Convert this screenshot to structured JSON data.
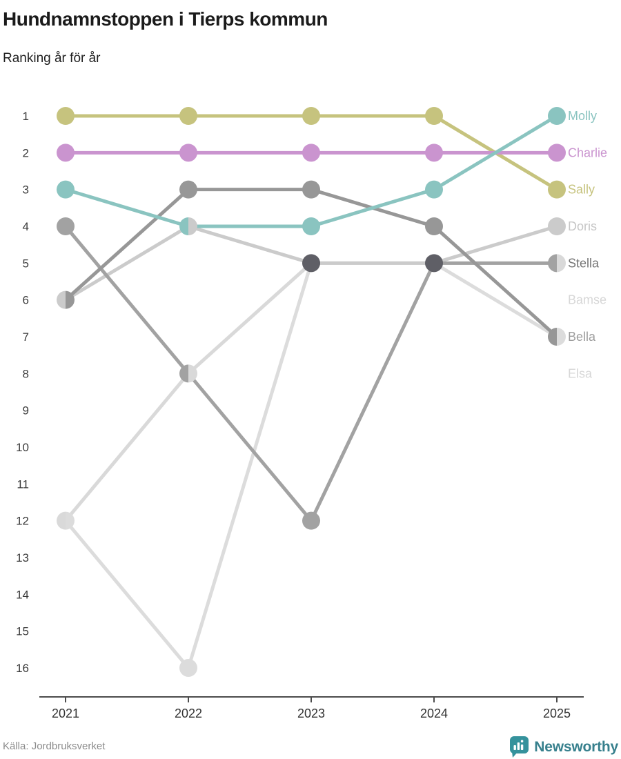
{
  "header": {
    "title": "Hundnamnstoppen i Tierps kommun",
    "subtitle": "Ranking år för år"
  },
  "chart_data": {
    "type": "line",
    "variant": "bump-ranking",
    "title": "Hundnamnstoppen i Tierps kommun",
    "subtitle": "Ranking år för år",
    "x": [
      "2021",
      "2022",
      "2023",
      "2024",
      "2025"
    ],
    "rank_ticks": [
      1,
      2,
      3,
      4,
      5,
      6,
      7,
      8,
      9,
      10,
      11,
      12,
      13,
      14,
      15,
      16
    ],
    "ylim": [
      1,
      16
    ],
    "grid": false,
    "legend_position": "right-direct-labels",
    "tie_color": "#5f5f66",
    "axis_color": "#4b4b4b",
    "tick_label_color": "#3a3a3a",
    "series": [
      {
        "name": "Molly",
        "color": "#8ac4c0",
        "label_color": "#8ac4c0",
        "label_slot": 1,
        "values": [
          3,
          4,
          4,
          3,
          1
        ]
      },
      {
        "name": "Charlie",
        "color": "#ca94cf",
        "label_color": "#ca94cf",
        "label_slot": 2,
        "values": [
          2,
          2,
          2,
          2,
          2
        ]
      },
      {
        "name": "Sally",
        "color": "#c6c37e",
        "label_color": "#c6c37e",
        "label_slot": 3,
        "values": [
          1,
          1,
          1,
          1,
          3
        ]
      },
      {
        "name": "Doris",
        "color": "#cbcbcb",
        "label_color": "#c6c6c6",
        "label_slot": 4,
        "values": [
          6,
          4,
          5,
          5,
          4
        ]
      },
      {
        "name": "Stella",
        "color": "#a2a2a2",
        "label_color": "#757575",
        "label_slot": 5,
        "values": [
          4,
          8,
          12,
          5,
          5
        ]
      },
      {
        "name": "Bamse",
        "color": "#d9d9d9",
        "label_color": "#d7d7d7",
        "label_slot": 6,
        "values": [
          12,
          8,
          5,
          5,
          5
        ]
      },
      {
        "name": "Bella",
        "color": "#979797",
        "label_color": "#9c9c9c",
        "label_slot": 7,
        "values": [
          6,
          3,
          3,
          4,
          7
        ]
      },
      {
        "name": "Elsa",
        "color": "#dcdcdc",
        "label_color": "#d7d7d7",
        "label_slot": 8,
        "values": [
          12,
          16,
          5,
          5,
          7
        ]
      }
    ]
  },
  "footer": {
    "source": "Källa: Jordbruksverket",
    "brand": "Newsworthy"
  }
}
